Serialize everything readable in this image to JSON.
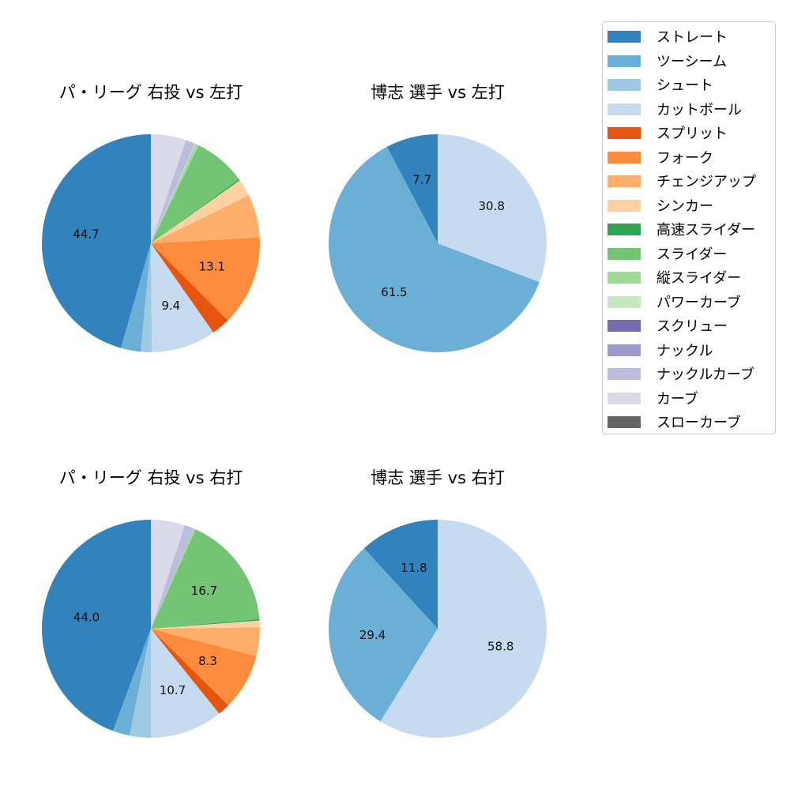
{
  "colors": {
    "ストレート": "#3182bd",
    "ツーシーム": "#6baed6",
    "シュート": "#9ecae1",
    "カットボール": "#c6dbef",
    "スプリット": "#e6550d",
    "フォーク": "#fd8d3c",
    "チェンジアップ": "#fdae6b",
    "シンカー": "#fdd0a2",
    "高速スライダー": "#31a354",
    "スライダー": "#74c476",
    "縦スライダー": "#a1d99b",
    "パワーカーブ": "#c7e9c0",
    "スクリュー": "#756bb1",
    "ナックル": "#9e9ac8",
    "ナックルカーブ": "#bcbddc",
    "カーブ": "#dadaeb",
    "スローカーブ": "#636363"
  },
  "legend": [
    "ストレート",
    "ツーシーム",
    "シュート",
    "カットボール",
    "スプリット",
    "フォーク",
    "チェンジアップ",
    "シンカー",
    "高速スライダー",
    "スライダー",
    "縦スライダー",
    "パワーカーブ",
    "スクリュー",
    "ナックル",
    "ナックルカーブ",
    "カーブ",
    "スローカーブ"
  ],
  "chart_data": [
    {
      "type": "pie",
      "title": "パ・リーグ 右投 vs 左打",
      "slices": [
        {
          "name": "ストレート",
          "value": 44.7,
          "label": "44.7"
        },
        {
          "name": "ツーシーム",
          "value": 2.9,
          "label": ""
        },
        {
          "name": "シュート",
          "value": 1.6,
          "label": ""
        },
        {
          "name": "カットボール",
          "value": 9.4,
          "label": "9.4"
        },
        {
          "name": "スプリット",
          "value": 2.7,
          "label": ""
        },
        {
          "name": "フォーク",
          "value": 13.1,
          "label": "13.1"
        },
        {
          "name": "チェンジアップ",
          "value": 6.3,
          "label": ""
        },
        {
          "name": "シンカー",
          "value": 2.5,
          "label": ""
        },
        {
          "name": "高速スライダー",
          "value": 0.2,
          "label": ""
        },
        {
          "name": "スライダー",
          "value": 7.6,
          "label": ""
        },
        {
          "name": "縦スライダー",
          "value": 0.5,
          "label": ""
        },
        {
          "name": "パワーカーブ",
          "value": 0.1,
          "label": ""
        },
        {
          "name": "ナックルカーブ",
          "value": 1.4,
          "label": ""
        },
        {
          "name": "カーブ",
          "value": 5.1,
          "label": ""
        }
      ]
    },
    {
      "type": "pie",
      "title": "博志 選手 vs 左打",
      "slices": [
        {
          "name": "ストレート",
          "value": 7.7,
          "label": "7.7"
        },
        {
          "name": "ツーシーム",
          "value": 61.5,
          "label": "61.5"
        },
        {
          "name": "カットボール",
          "value": 30.8,
          "label": "30.8"
        }
      ]
    },
    {
      "type": "pie",
      "title": "パ・リーグ 右投 vs 右打",
      "slices": [
        {
          "name": "ストレート",
          "value": 44.0,
          "label": "44.0"
        },
        {
          "name": "ツーシーム",
          "value": 2.5,
          "label": ""
        },
        {
          "name": "シュート",
          "value": 3.1,
          "label": ""
        },
        {
          "name": "カットボール",
          "value": 10.7,
          "label": "10.7"
        },
        {
          "name": "スプリット",
          "value": 1.8,
          "label": ""
        },
        {
          "name": "フォーク",
          "value": 8.3,
          "label": "8.3"
        },
        {
          "name": "チェンジアップ",
          "value": 4.2,
          "label": ""
        },
        {
          "name": "シンカー",
          "value": 1.0,
          "label": ""
        },
        {
          "name": "高速スライダー",
          "value": 0.2,
          "label": ""
        },
        {
          "name": "スライダー",
          "value": 16.7,
          "label": "16.7"
        },
        {
          "name": "縦スライダー",
          "value": 0.3,
          "label": ""
        },
        {
          "name": "ナックルカーブ",
          "value": 1.4,
          "label": ""
        },
        {
          "name": "カーブ",
          "value": 5.0,
          "label": ""
        }
      ]
    },
    {
      "type": "pie",
      "title": "博志 選手 vs 右打",
      "slices": [
        {
          "name": "ストレート",
          "value": 11.8,
          "label": "11.8"
        },
        {
          "name": "ツーシーム",
          "value": 29.4,
          "label": "29.4"
        },
        {
          "name": "カットボール",
          "value": 58.8,
          "label": "58.8"
        }
      ]
    }
  ]
}
